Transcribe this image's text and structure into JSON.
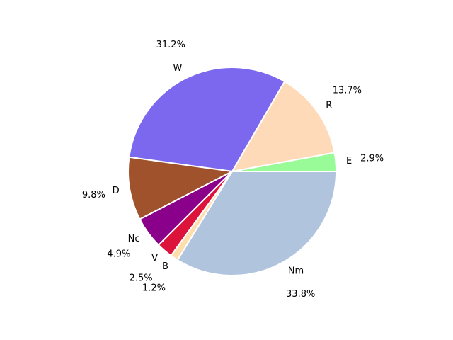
{
  "chart_data": {
    "type": "pie",
    "categories": [
      "E",
      "R",
      "W",
      "D",
      "Nc",
      "V",
      "B",
      "Nm"
    ],
    "values": [
      2.9,
      13.7,
      31.2,
      9.8,
      4.9,
      2.5,
      1.2,
      33.8
    ],
    "value_labels": [
      "2.9%",
      "13.7%",
      "31.2%",
      "9.8%",
      "4.9%",
      "2.5%",
      "1.2%",
      "33.8%"
    ],
    "colors": [
      "#98fb98",
      "#ffdab9",
      "#7b68ee",
      "#a0522d",
      "#8b008b",
      "#dc143c",
      "#ffdead",
      "#b0c4de"
    ]
  }
}
